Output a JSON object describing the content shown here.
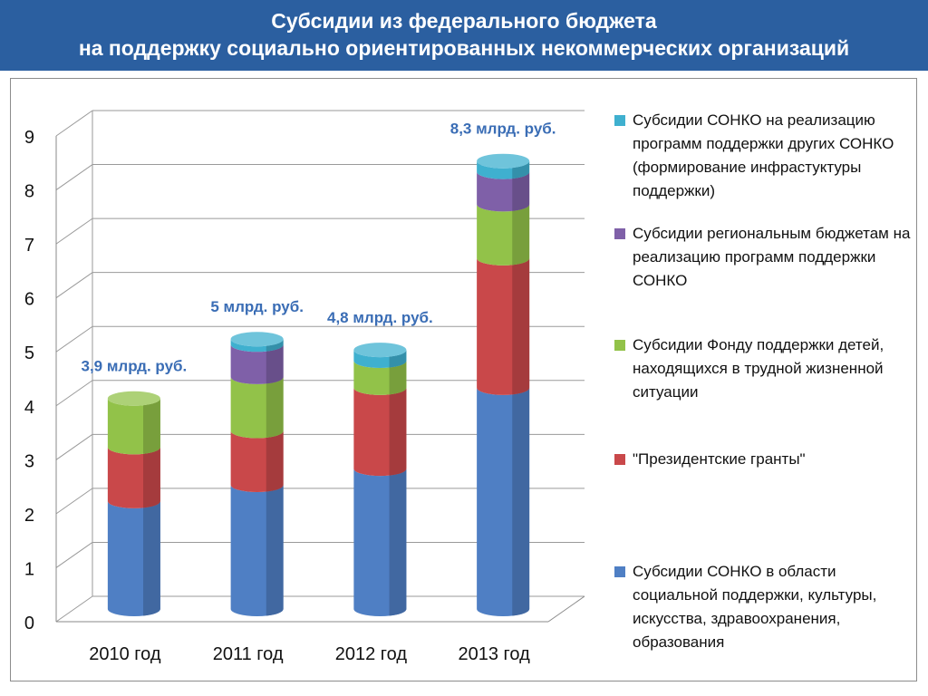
{
  "header": {
    "title_line1": "Субсидии из федерального бюджета",
    "title_line2": "на поддержку социально ориентированных некоммерческих организаций"
  },
  "chart_data": {
    "type": "bar",
    "stacked": true,
    "three_d": true,
    "categories": [
      "2010 год",
      "2011 год",
      "2012 год",
      "2013 год"
    ],
    "ylim": [
      0,
      9
    ],
    "yticks": [
      "0",
      "1",
      "2",
      "3",
      "4",
      "5",
      "6",
      "7",
      "8",
      "9"
    ],
    "series": [
      {
        "name": "Субсидии СОНКО в области социальной поддержки, культуры, искусства, здравоохранения, образования",
        "color": "#4f7fc4",
        "values": [
          2.0,
          2.3,
          2.6,
          4.1
        ]
      },
      {
        "name": "\"Президентские гранты\"",
        "color": "#c9484a",
        "values": [
          1.0,
          1.0,
          1.5,
          2.4
        ]
      },
      {
        "name": "Субсидии Фонду поддержки детей, находящихся в трудной жизненной ситуации",
        "color": "#92c249",
        "values": [
          0.9,
          1.0,
          0.5,
          1.0
        ]
      },
      {
        "name": "Субсидии региональным бюджетам на реализацию программ поддержки СОНКО",
        "color": "#7f60a8",
        "values": [
          0,
          0.6,
          0,
          0.6
        ]
      },
      {
        "name": "Субсидии СОНКО на реализацию программ поддержки других СОНКО (формирование инфрастуктуры поддержки)",
        "color": "#3fb0cf",
        "values": [
          0,
          0.1,
          0.2,
          0.2
        ]
      }
    ],
    "totals": [
      "3,9 млрд. руб.",
      "5 млрд. руб.",
      "4,8 млрд. руб.",
      "8,3 млрд. руб."
    ],
    "total_label_color": "#3a6db5",
    "legend_position": "right"
  },
  "legend": {
    "items": [
      {
        "text": "Субсидии СОНКО на реализацию программ поддержки других СОНКО (формирование инфрастуктуры поддержки)",
        "color": "#3fb0cf"
      },
      {
        "text": "Субсидии региональным бюджетам на реализацию программ поддержки СОНКО",
        "color": "#7f60a8"
      },
      {
        "text": "Субсидии Фонду поддержки детей, находящихся в трудной жизненной ситуации",
        "color": "#92c249"
      },
      {
        "text": "\"Президентские гранты\"",
        "color": "#c9484a"
      },
      {
        "text": "Субсидии СОНКО в области социальной поддержки, культуры, искусства, здравоохранения, образования",
        "color": "#4f7fc4"
      }
    ]
  }
}
